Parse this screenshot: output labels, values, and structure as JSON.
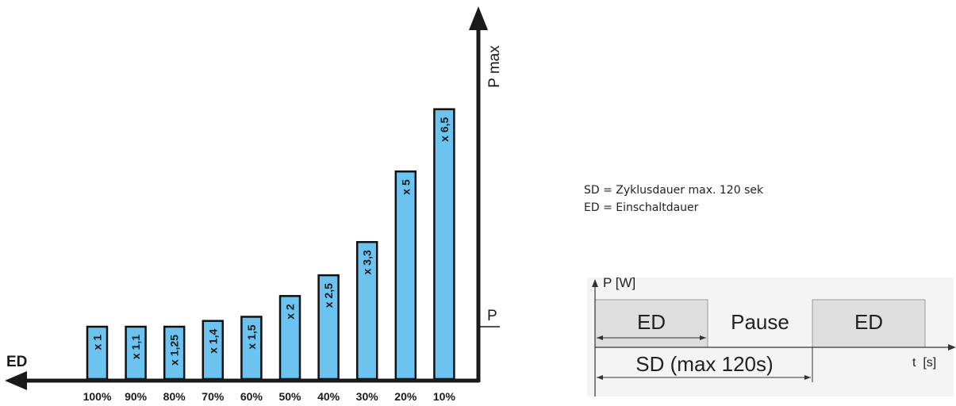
{
  "chart_data": {
    "type": "bar",
    "categories": [
      "100%",
      "90%",
      "80%",
      "70%",
      "60%",
      "50%",
      "40%",
      "30%",
      "20%",
      "10%"
    ],
    "values": [
      1,
      1.1,
      1.25,
      1.4,
      1.5,
      2,
      2.5,
      3.3,
      5,
      6.5
    ],
    "bar_labels": [
      "x 1",
      "x 1,1",
      "x 1,25",
      "x 1,4",
      "x 1,5",
      "x 2",
      "x 2,5",
      "x 3,3",
      "x 5",
      "x 6,5"
    ],
    "xlabel": "ED",
    "ylabel": "P max",
    "reference_label": "P",
    "bar_color": "#6cc3ef",
    "axis_color": "#1a1a1a"
  },
  "notes": {
    "line1": "SD = Zyklusdauer max. 120 sek",
    "line2": "ED = Einschaltdauer"
  },
  "timing": {
    "y_label": "P [W]",
    "x_label": "t  [s]",
    "segments": [
      "ED",
      "Pause",
      "ED"
    ],
    "cycle_label": "SD (max 120s)",
    "block_color": "#dedede",
    "background": "#f4f4f4"
  }
}
